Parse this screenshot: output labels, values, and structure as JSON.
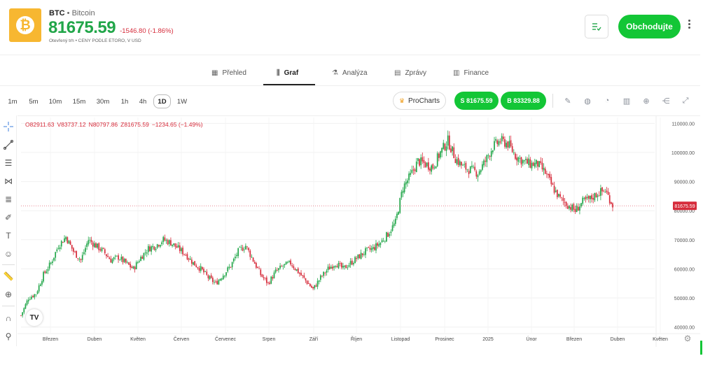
{
  "header": {
    "symbol": "BTC",
    "separator": " • ",
    "name": "Bitcoin",
    "price": "81675.59",
    "change": "-1546.80 (-1.86%)",
    "subline": "Otevřený trh • CENY PODLE ETORO, V USD",
    "trade_label": "Obchodujte"
  },
  "tabs": [
    {
      "label": "Přehled",
      "icon": "overview-icon"
    },
    {
      "label": "Graf",
      "icon": "candles-icon",
      "active": true
    },
    {
      "label": "Analýza",
      "icon": "flask-icon"
    },
    {
      "label": "Zprávy",
      "icon": "news-icon"
    },
    {
      "label": "Finance",
      "icon": "bars-icon"
    }
  ],
  "toolbar": {
    "timeframes": [
      "1m",
      "5m",
      "10m",
      "15m",
      "30m",
      "1h",
      "4h",
      "1D",
      "1W"
    ],
    "active_timeframe": "1D",
    "procharts_label": "ProCharts",
    "sell_label": "S 81675.59",
    "buy_label": "B 83329.88"
  },
  "ohlc": {
    "open": "O82911.63",
    "high": "V83737.12",
    "low": "N80797.86",
    "close": "Z81675.59",
    "change": "−1234.65 (−1.49%)"
  },
  "colors": {
    "up": "#21a649",
    "down": "#d62c3b",
    "accent": "#13c636",
    "logo": "#f7b731"
  },
  "chart_data": {
    "type": "candlestick",
    "x_labels": [
      "Březen",
      "Duben",
      "Květen",
      "Červen",
      "Červenec",
      "Srpen",
      "Září",
      "Říjen",
      "Listopad",
      "Prosinec",
      "2025",
      "Únor",
      "Březen",
      "Duben",
      "Květen"
    ],
    "y_ticks": [
      "110000.00",
      "100000.00",
      "90000.00",
      "80000.00",
      "70000.00",
      "60000.00",
      "50000.00",
      "40000.00"
    ],
    "ylim": [
      38000,
      112000
    ],
    "current_price_label": "81675.59",
    "current_price": 81675.59,
    "series_close_path": [
      [
        0,
        44000
      ],
      [
        5,
        50000
      ],
      [
        10,
        51500
      ],
      [
        15,
        58000
      ],
      [
        20,
        62000
      ],
      [
        25,
        68000
      ],
      [
        30,
        71000
      ],
      [
        35,
        66000
      ],
      [
        40,
        63000
      ],
      [
        45,
        70000
      ],
      [
        50,
        68000
      ],
      [
        55,
        66000
      ],
      [
        60,
        63000
      ],
      [
        65,
        64000
      ],
      [
        70,
        62000
      ],
      [
        75,
        60000
      ],
      [
        80,
        64000
      ],
      [
        85,
        67000
      ],
      [
        90,
        68000
      ],
      [
        95,
        70000
      ],
      [
        100,
        69000
      ],
      [
        105,
        67000
      ],
      [
        110,
        65000
      ],
      [
        115,
        62000
      ],
      [
        120,
        60000
      ],
      [
        125,
        57000
      ],
      [
        130,
        55000
      ],
      [
        135,
        58000
      ],
      [
        140,
        61000
      ],
      [
        145,
        66000
      ],
      [
        150,
        68000
      ],
      [
        155,
        63000
      ],
      [
        160,
        58000
      ],
      [
        165,
        55000
      ],
      [
        170,
        59000
      ],
      [
        175,
        61000
      ],
      [
        180,
        62000
      ],
      [
        185,
        59000
      ],
      [
        190,
        56000
      ],
      [
        195,
        53000
      ],
      [
        200,
        57000
      ],
      [
        205,
        60000
      ],
      [
        210,
        62000
      ],
      [
        215,
        60000
      ],
      [
        220,
        62000
      ],
      [
        225,
        64000
      ],
      [
        230,
        66000
      ],
      [
        235,
        67000
      ],
      [
        240,
        69000
      ],
      [
        245,
        72000
      ],
      [
        250,
        76000
      ],
      [
        255,
        88000
      ],
      [
        260,
        92000
      ],
      [
        265,
        97000
      ],
      [
        270,
        96000
      ],
      [
        275,
        95000
      ],
      [
        280,
        100000
      ],
      [
        285,
        104000
      ],
      [
        290,
        98000
      ],
      [
        295,
        95000
      ],
      [
        300,
        94000
      ],
      [
        305,
        93000
      ],
      [
        310,
        97000
      ],
      [
        315,
        102000
      ],
      [
        320,
        104000
      ],
      [
        325,
        103000
      ],
      [
        330,
        99000
      ],
      [
        335,
        97000
      ],
      [
        340,
        96000
      ],
      [
        345,
        96000
      ],
      [
        350,
        93000
      ],
      [
        355,
        88000
      ],
      [
        360,
        84000
      ],
      [
        365,
        82000
      ],
      [
        370,
        80000
      ],
      [
        375,
        83000
      ],
      [
        380,
        84000
      ],
      [
        385,
        86000
      ],
      [
        390,
        87000
      ],
      [
        395,
        82000
      ]
    ]
  }
}
